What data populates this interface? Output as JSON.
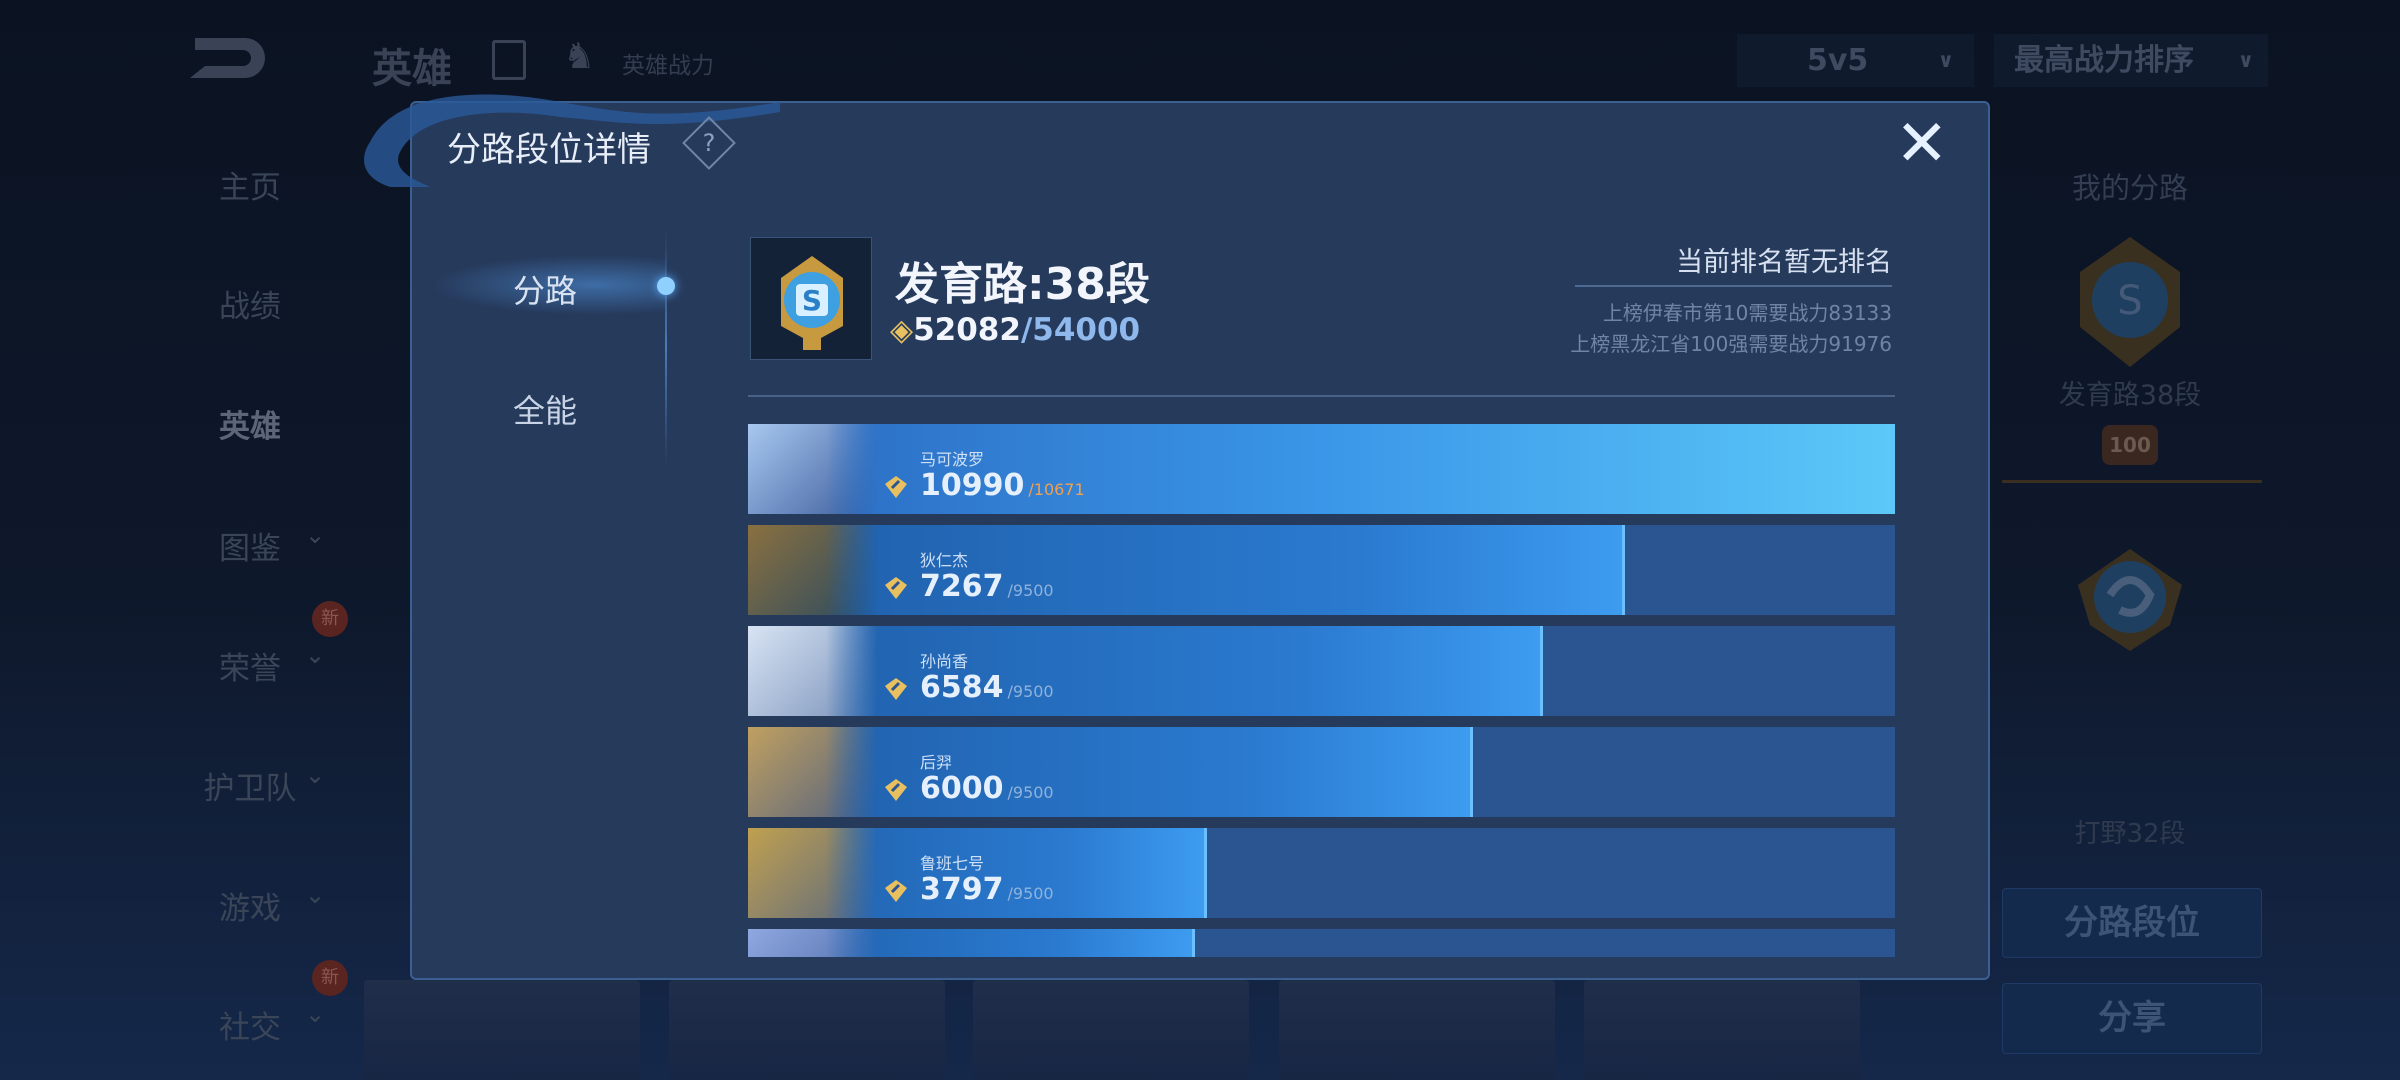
{
  "background": {
    "header": {
      "title": "英雄",
      "subtitle": "英雄战力",
      "mode_select": "5v5",
      "sort_select": "最高战力排序"
    },
    "sidebar": {
      "items": [
        {
          "label": "主页",
          "chevron": false,
          "new": false
        },
        {
          "label": "战绩",
          "chevron": false,
          "new": false
        },
        {
          "label": "英雄",
          "chevron": false,
          "new": false,
          "active": true
        },
        {
          "label": "图鉴",
          "chevron": true,
          "new": false
        },
        {
          "label": "荣誉",
          "chevron": true,
          "new": true
        },
        {
          "label": "护卫队",
          "chevron": true,
          "new": false
        },
        {
          "label": "游戏",
          "chevron": true,
          "new": false
        },
        {
          "label": "社交",
          "chevron": true,
          "new": true
        }
      ],
      "new_badge": "新"
    },
    "right_panel": {
      "title": "我的分路",
      "lane1": "发育路38段",
      "emblem_number": "100",
      "lane2": "打野32段",
      "button_lane_rank": "分路段位",
      "button_share": "分享"
    }
  },
  "modal": {
    "title": "分路段位详情",
    "help_icon": "?",
    "tabs": [
      {
        "label": "分路",
        "active": true
      },
      {
        "label": "全能",
        "active": false
      }
    ],
    "rank": {
      "title": "发育路:38段",
      "current": "52082",
      "target": "/54000"
    },
    "ranking": {
      "status": "当前排名暂无排名",
      "line1": "上榜伊春市第10需要战力83133",
      "line2": "上榜黑龙江省100强需要战力91976"
    },
    "heroes": [
      {
        "name": "马可波罗",
        "power": "10990",
        "max": "/10671",
        "progress": 1.0
      },
      {
        "name": "狄仁杰",
        "power": "7267",
        "max": "/9500",
        "progress": 0.765
      },
      {
        "name": "孙尚香",
        "power": "6584",
        "max": "/9500",
        "progress": 0.693
      },
      {
        "name": "后羿",
        "power": "6000",
        "max": "/9500",
        "progress": 0.632
      },
      {
        "name": "鲁班七号",
        "power": "3797",
        "max": "/9500",
        "progress": 0.4
      },
      {
        "progress": 0.39
      }
    ],
    "colors": {
      "accent": "#3d9cf0",
      "gold": "#e8c060",
      "overflow": "#f0a050"
    }
  }
}
